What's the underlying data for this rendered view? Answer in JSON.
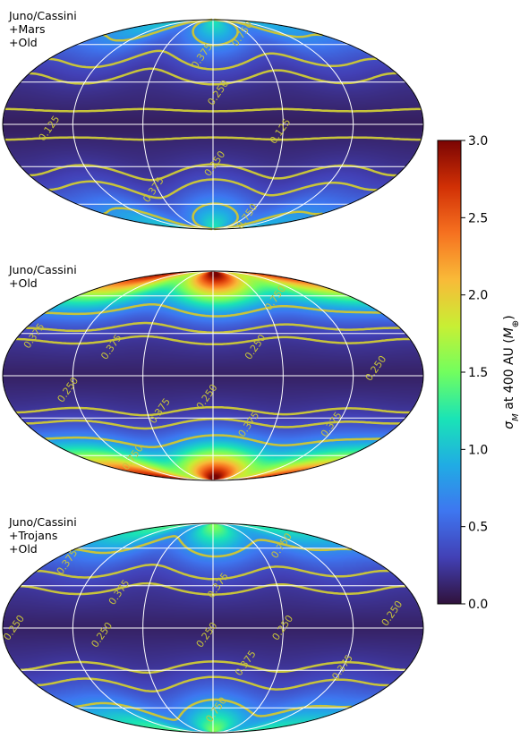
{
  "chart_data": [
    {
      "type": "heatmap",
      "projection": "mollweide",
      "label_lines": [
        "Juno/Cassini",
        "+Mars",
        "+Old"
      ],
      "contour_levels": [
        0.125,
        0.25,
        0.375,
        0.75
      ],
      "contour_labels": [
        {
          "text": "0.750",
          "lon": 50,
          "lat": 70
        },
        {
          "text": "0.375",
          "lon": -12,
          "lat": 50
        },
        {
          "text": "0.250",
          "lon": 5,
          "lat": 22
        },
        {
          "text": "0.125",
          "lon": -140,
          "lat": -3
        },
        {
          "text": "0.125",
          "lon": 58,
          "lat": -5
        },
        {
          "text": "0.250",
          "lon": 2,
          "lat": -28
        },
        {
          "text": "0.375",
          "lon": -65,
          "lat": -48
        },
        {
          "text": "0.750",
          "lon": 62,
          "lat": -72
        }
      ],
      "field": {
        "base": 0.3,
        "equator_min": 0.08,
        "polar_max": 1.05
      }
    },
    {
      "type": "heatmap",
      "projection": "mollweide",
      "label_lines": [
        "Juno/Cassini",
        "+Old"
      ],
      "contour_levels": [
        0.25,
        0.375,
        0.75
      ],
      "contour_labels": [
        {
          "text": "0.750",
          "lon": 80,
          "lat": 58
        },
        {
          "text": "0.375",
          "lon": -165,
          "lat": 28
        },
        {
          "text": "0.375",
          "lon": -90,
          "lat": 20
        },
        {
          "text": "0.250",
          "lon": -125,
          "lat": -10
        },
        {
          "text": "0.250",
          "lon": 38,
          "lat": 20
        },
        {
          "text": "0.250",
          "lon": 140,
          "lat": 5
        },
        {
          "text": "0.250",
          "lon": -5,
          "lat": -15
        },
        {
          "text": "0.375",
          "lon": -48,
          "lat": -25
        },
        {
          "text": "0.375",
          "lon": 35,
          "lat": -35
        },
        {
          "text": "0.375",
          "lon": 115,
          "lat": -35
        },
        {
          "text": "0.750",
          "lon": -110,
          "lat": -62
        }
      ],
      "field": {
        "base": 0.35,
        "equator_min": 0.1,
        "polar_max": 3.0
      }
    },
    {
      "type": "heatmap",
      "projection": "mollweide",
      "label_lines": [
        "Juno/Cassini",
        "+Trojans",
        "+Old"
      ],
      "contour_levels": [
        0.25,
        0.375,
        0.75
      ],
      "contour_labels": [
        {
          "text": "0.750",
          "lon": 95,
          "lat": 62
        },
        {
          "text": "0.375",
          "lon": -160,
          "lat": 48
        },
        {
          "text": "0.375",
          "lon": -85,
          "lat": 25
        },
        {
          "text": "0.375",
          "lon": 5,
          "lat": 30
        },
        {
          "text": "0.250",
          "lon": -170,
          "lat": 0
        },
        {
          "text": "0.250",
          "lon": -95,
          "lat": -5
        },
        {
          "text": "0.250",
          "lon": -5,
          "lat": -5
        },
        {
          "text": "0.250",
          "lon": 60,
          "lat": 0
        },
        {
          "text": "0.250",
          "lon": 155,
          "lat": 10
        },
        {
          "text": "0.375",
          "lon": 30,
          "lat": -25
        },
        {
          "text": "0.375",
          "lon": 120,
          "lat": -28
        },
        {
          "text": "0.750",
          "lon": 5,
          "lat": -62
        }
      ],
      "field": {
        "base": 0.35,
        "equator_min": 0.1,
        "polar_max": 1.4
      }
    }
  ],
  "colorbar": {
    "label": "σ_M at 400 AU (M_⊕)",
    "label_main": "σ",
    "label_sub": "M",
    "label_mid": " at 400 AU (",
    "label_sym": "M",
    "label_sym_sub": "⊕",
    "label_end": ")",
    "range": [
      0.0,
      3.0
    ],
    "ticks": [
      "0.0",
      "0.5",
      "1.0",
      "1.5",
      "2.0",
      "2.5",
      "3.0"
    ],
    "colormap": "turbo"
  },
  "colors": {
    "contour": "#c8c43a",
    "contour_label": "#c8c43a",
    "grid": "#ffffff",
    "outline": "#000000"
  }
}
